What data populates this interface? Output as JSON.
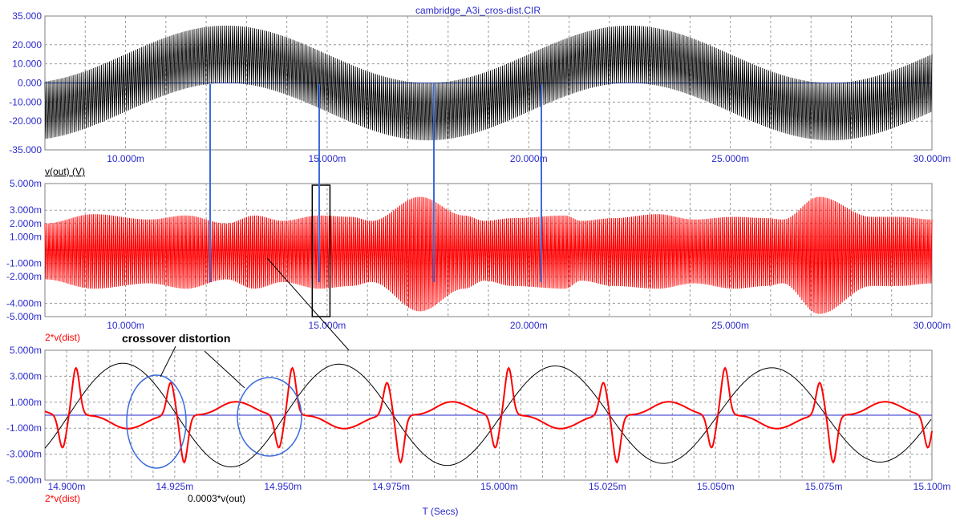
{
  "title": "cambridge_A3i_cros-dist.CIR",
  "x_axis_label": "T (Secs)",
  "annotation": "crossover distortion",
  "colors": {
    "axis_text": "#2a2acc",
    "trace_black": "#000000",
    "trace_red": "#ff0000",
    "marker_blue": "#3a6bdc",
    "grid": "#9a9a9a"
  },
  "chart_data": [
    {
      "type": "line",
      "id": "panel1",
      "xlim": [
        0.008,
        0.03
      ],
      "ylim": [
        -35,
        35
      ],
      "x_ticks": [
        {
          "v": 0.01,
          "label": "10.000m"
        },
        {
          "v": 0.015,
          "label": "15.000m"
        },
        {
          "v": 0.02,
          "label": "20.000m"
        },
        {
          "v": 0.025,
          "label": "25.000m"
        },
        {
          "v": 0.03,
          "label": "30.000m"
        }
      ],
      "y_ticks": [
        {
          "v": 35,
          "label": "35.000"
        },
        {
          "v": 20,
          "label": "20.000"
        },
        {
          "v": 10,
          "label": "10.000"
        },
        {
          "v": 0,
          "label": "0.000"
        },
        {
          "v": -10,
          "label": "-10.000"
        },
        {
          "v": -20,
          "label": "-20.000"
        },
        {
          "v": -35,
          "label": "-35.000"
        }
      ],
      "grid": true,
      "series": [
        {
          "name": "v(out) (V)",
          "color": "#000000",
          "model": {
            "kind": "am_band",
            "carrier_khz": 20,
            "envelope_amp": 15,
            "envelope_period_ms": 10,
            "envelope_phase_peak_ms": 12.5,
            "band_halfwidth": 15
          }
        }
      ]
    },
    {
      "type": "line",
      "id": "panel2",
      "xlim": [
        0.008,
        0.03
      ],
      "ylim": [
        -5,
        5
      ],
      "x_ticks": [
        {
          "v": 0.01,
          "label": "10.000m"
        },
        {
          "v": 0.015,
          "label": "15.000m"
        },
        {
          "v": 0.02,
          "label": "20.000m"
        },
        {
          "v": 0.025,
          "label": "25.000m"
        },
        {
          "v": 0.03,
          "label": "30.000m"
        }
      ],
      "y_ticks": [
        {
          "v": 5,
          "label": "5.000m"
        },
        {
          "v": 3,
          "label": "3.000m"
        },
        {
          "v": 2,
          "label": "2.000m"
        },
        {
          "v": 1,
          "label": "1.000m"
        },
        {
          "v": -1,
          "label": "-1.000m"
        },
        {
          "v": -2,
          "label": "-2.000m"
        },
        {
          "v": -4,
          "label": "-4.000m"
        },
        {
          "v": -5,
          "label": "-5.000m"
        }
      ],
      "grid": true,
      "series": [
        {
          "name": "2*v(dist)",
          "color": "#ff0000",
          "envelope_points": [
            [
              8.0,
              2.0
            ],
            [
              9.2,
              2.7
            ],
            [
              10.6,
              2.3
            ],
            [
              11.5,
              2.6
            ],
            [
              12.5,
              2.0
            ],
            [
              13.2,
              2.6
            ],
            [
              13.9,
              2.2
            ],
            [
              14.8,
              2.6
            ],
            [
              15.6,
              2.5
            ],
            [
              16.1,
              2.2
            ],
            [
              17.3,
              4.0
            ],
            [
              18.4,
              2.6
            ],
            [
              18.9,
              2.2
            ],
            [
              19.6,
              2.4
            ],
            [
              20.9,
              2.6
            ],
            [
              21.3,
              2.2
            ],
            [
              22.1,
              2.4
            ],
            [
              23.2,
              2.7
            ],
            [
              24.1,
              2.3
            ],
            [
              25.1,
              2.5
            ],
            [
              25.9,
              2.4
            ],
            [
              26.3,
              2.3
            ],
            [
              27.2,
              4.0
            ],
            [
              28.5,
              2.5
            ],
            [
              29.2,
              2.5
            ],
            [
              30.0,
              2.3
            ]
          ],
          "envelope_points_neg": [
            [
              8.0,
              -2.2
            ],
            [
              9.2,
              -2.9
            ],
            [
              10.6,
              -2.5
            ],
            [
              11.5,
              -2.9
            ],
            [
              12.5,
              -2.2
            ],
            [
              13.2,
              -2.9
            ],
            [
              13.9,
              -2.4
            ],
            [
              14.8,
              -2.9
            ],
            [
              15.6,
              -2.7
            ],
            [
              16.1,
              -2.4
            ],
            [
              17.3,
              -4.6
            ],
            [
              18.4,
              -2.9
            ],
            [
              18.9,
              -2.3
            ],
            [
              19.6,
              -2.7
            ],
            [
              20.9,
              -2.9
            ],
            [
              21.3,
              -2.3
            ],
            [
              22.1,
              -2.7
            ],
            [
              23.2,
              -2.9
            ],
            [
              24.1,
              -2.5
            ],
            [
              25.1,
              -2.9
            ],
            [
              25.9,
              -2.7
            ],
            [
              26.3,
              -2.5
            ],
            [
              27.2,
              -4.8
            ],
            [
              28.5,
              -2.7
            ],
            [
              29.2,
              -2.7
            ],
            [
              30.0,
              -2.5
            ]
          ]
        }
      ]
    },
    {
      "type": "line",
      "id": "panel3",
      "xlim": [
        0.014895,
        0.0151
      ],
      "ylim": [
        -5,
        5
      ],
      "x_ticks": [
        {
          "v": 0.0149,
          "label": "14.900m"
        },
        {
          "v": 0.014925,
          "label": "14.925m"
        },
        {
          "v": 0.01495,
          "label": "14.950m"
        },
        {
          "v": 0.014975,
          "label": "14.975m"
        },
        {
          "v": 0.015,
          "label": "15.000m"
        },
        {
          "v": 0.015025,
          "label": "15.025m"
        },
        {
          "v": 0.01505,
          "label": "15.050m"
        },
        {
          "v": 0.015075,
          "label": "15.075m"
        },
        {
          "v": 0.0151,
          "label": "15.100m"
        }
      ],
      "y_ticks": [
        {
          "v": 5,
          "label": "5.000m"
        },
        {
          "v": 3,
          "label": "3.000m"
        },
        {
          "v": 1,
          "label": "1.000m"
        },
        {
          "v": -1,
          "label": "-1.000m"
        },
        {
          "v": -3,
          "label": "-3.000m"
        },
        {
          "v": -5,
          "label": "-5.000m"
        }
      ],
      "grid": true,
      "series": [
        {
          "name": "2*v(dist)",
          "color": "#ff0000"
        },
        {
          "name": "0.0003*v(out)",
          "color": "#000000"
        }
      ]
    }
  ]
}
